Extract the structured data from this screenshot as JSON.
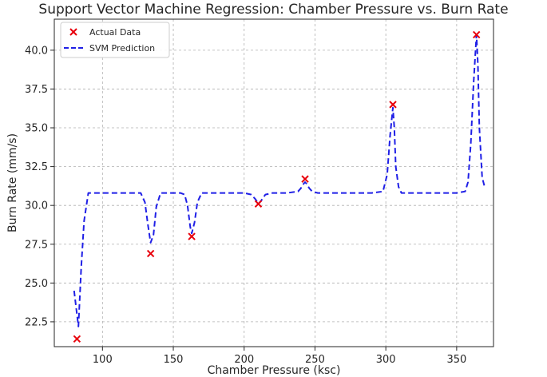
{
  "chart_data": {
    "type": "scatter",
    "title": "Support Vector Machine Regression: Chamber Pressure vs. Burn Rate",
    "xlabel": "Chamber Pressure (ksc)",
    "ylabel": "Burn Rate (mm/s)",
    "xlim": [
      66,
      376
    ],
    "ylim": [
      20.9,
      42
    ],
    "xticks": [
      100,
      150,
      200,
      250,
      300,
      350
    ],
    "yticks": [
      22.5,
      25.0,
      27.5,
      30.0,
      32.5,
      35.0,
      37.5,
      40.0
    ],
    "xtick_labels": [
      "100",
      "150",
      "200",
      "250",
      "300",
      "350"
    ],
    "ytick_labels": [
      "22.5",
      "25.0",
      "27.5",
      "30.0",
      "32.5",
      "35.0",
      "37.5",
      "40.0"
    ],
    "grid": true,
    "legend_position": "top-left",
    "series": [
      {
        "name": "Actual Data",
        "kind": "scatter",
        "marker": "x",
        "color": "#e8000b",
        "x": [
          82,
          134,
          163,
          210,
          243,
          305,
          364
        ],
        "y": [
          21.4,
          26.9,
          28.0,
          30.1,
          31.7,
          36.5,
          41.0
        ]
      },
      {
        "name": "SVM Prediction",
        "kind": "line",
        "style": "dashed",
        "color": "#1f1fe6",
        "x": [
          80,
          83,
          85,
          87,
          90,
          95,
          100,
          110,
          120,
          127,
          130,
          132,
          134,
          136,
          138,
          141,
          145,
          150,
          155,
          158,
          160,
          162,
          163,
          165,
          167,
          170,
          175,
          180,
          190,
          200,
          205,
          208,
          210,
          212,
          215,
          220,
          230,
          238,
          240,
          242,
          243,
          244,
          246,
          248,
          252,
          260,
          270,
          280,
          290,
          298,
          301,
          303,
          305,
          306,
          307,
          309,
          311,
          314,
          320,
          330,
          340,
          350,
          356,
          358,
          360,
          362,
          364,
          365,
          366,
          368,
          370
        ],
        "y": [
          24.5,
          22.2,
          26.0,
          29.0,
          30.8,
          30.8,
          30.8,
          30.8,
          30.8,
          30.8,
          30.2,
          28.8,
          27.6,
          28.1,
          29.9,
          30.8,
          30.8,
          30.8,
          30.8,
          30.7,
          30.0,
          28.6,
          28.2,
          28.9,
          30.2,
          30.8,
          30.8,
          30.8,
          30.8,
          30.8,
          30.7,
          30.4,
          30.1,
          30.3,
          30.7,
          30.8,
          30.8,
          30.9,
          31.1,
          31.4,
          31.5,
          31.4,
          31.1,
          30.9,
          30.8,
          30.8,
          30.8,
          30.8,
          30.8,
          30.9,
          32.0,
          34.5,
          36.3,
          35.0,
          32.5,
          31.2,
          30.8,
          30.8,
          30.8,
          30.8,
          30.8,
          30.8,
          30.9,
          31.5,
          34.0,
          38.0,
          41.0,
          39.0,
          35.0,
          31.8,
          31.1
        ]
      }
    ]
  }
}
